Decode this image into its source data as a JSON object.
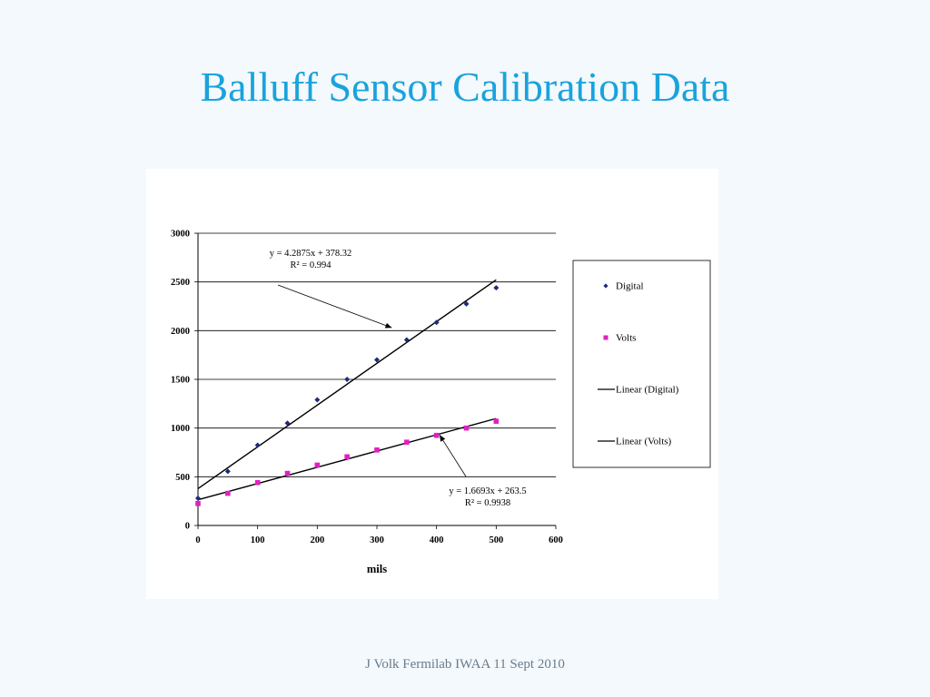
{
  "slide": {
    "title": "Balluff Sensor Calibration Data",
    "footer": "J Volk Fermilab IWAA 11 Sept 2010"
  },
  "colors": {
    "title": "#1aa3dc",
    "digital_marker": "#1f2a7a",
    "volts_marker": "#e020c0",
    "trendline": "#000000"
  },
  "chart_data": {
    "type": "scatter",
    "xlabel": "mils",
    "ylabel": "",
    "xlim": [
      0,
      600
    ],
    "ylim": [
      0,
      3000
    ],
    "x_ticks": [
      "0",
      "100",
      "200",
      "300",
      "400",
      "500",
      "600"
    ],
    "y_ticks": [
      "0",
      "500",
      "1000",
      "1500",
      "2000",
      "2500",
      "3000"
    ],
    "grid": "horizontal",
    "legend_position": "right",
    "x": [
      0,
      50,
      100,
      150,
      200,
      250,
      300,
      350,
      400,
      450,
      500
    ],
    "series": [
      {
        "name": "Digital",
        "marker": "diamond",
        "color": "#1f2a7a",
        "values": [
          280,
          555,
          825,
          1050,
          1290,
          1500,
          1700,
          1905,
          2085,
          2275,
          2440
        ]
      },
      {
        "name": "Volts",
        "marker": "square",
        "color": "#e020c0",
        "values": [
          225,
          330,
          440,
          535,
          620,
          705,
          775,
          855,
          925,
          1000,
          1070
        ]
      }
    ],
    "trendlines": [
      {
        "name": "Linear (Digital)",
        "slope": 4.2875,
        "intercept": 378.32,
        "x_range": [
          0,
          500
        ],
        "equation": "y = 4.2875x + 378.32",
        "r2": "R² = 0.994"
      },
      {
        "name": "Linear (Volts)",
        "slope": 1.6693,
        "intercept": 263.5,
        "x_range": [
          0,
          500
        ],
        "equation": "y = 1.6693x + 263.5",
        "r2": "R² = 0.9938"
      }
    ],
    "annotations": [
      {
        "lines": [
          "y = 4.2875x + 378.32",
          "R² = 0.994"
        ],
        "arrow_to": [
          325,
          2030
        ]
      },
      {
        "lines": [
          "y = 1.6693x + 263.5",
          "R² = 0.9938"
        ],
        "arrow_to": [
          405,
          930
        ]
      }
    ],
    "legend": [
      "Digital",
      "Volts",
      "Linear (Digital)",
      "Linear (Volts)"
    ]
  }
}
